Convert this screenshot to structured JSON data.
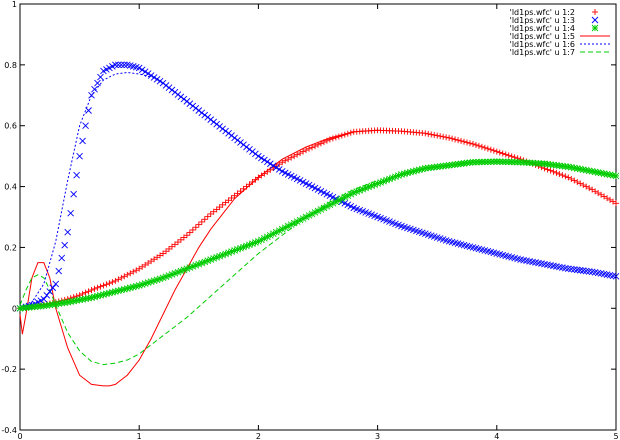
{
  "chart_data": {
    "type": "line",
    "title": "",
    "xlabel": "",
    "ylabel": "",
    "xlim": [
      0,
      5
    ],
    "ylim": [
      -0.4,
      1
    ],
    "x_ticks": [
      0,
      1,
      2,
      3,
      4,
      5
    ],
    "x_tick_labels": [
      "0",
      "1",
      "2",
      "3",
      "4",
      "5"
    ],
    "y_ticks": [
      -0.4,
      -0.2,
      0,
      0.2,
      0.4,
      0.6,
      0.8,
      1
    ],
    "y_tick_labels": [
      "-0.4",
      "-0.2",
      "0",
      "0.2",
      "0.4",
      "0.6",
      "0.8",
      "1"
    ],
    "grid": false,
    "legend_position": "top-right",
    "series": [
      {
        "name": "'ld1ps.wfc' u 1:2",
        "style": "plus",
        "color": "#ff0000",
        "x": [
          0,
          0.1,
          0.2,
          0.3,
          0.4,
          0.5,
          0.6,
          0.8,
          1.0,
          1.2,
          1.4,
          1.6,
          1.8,
          2.0,
          2.2,
          2.4,
          2.6,
          2.8,
          3.0,
          3.2,
          3.4,
          3.6,
          3.8,
          4.0,
          4.2,
          4.4,
          4.6,
          4.8,
          5.0
        ],
        "y": [
          0,
          0.005,
          0.012,
          0.02,
          0.03,
          0.043,
          0.06,
          0.09,
          0.13,
          0.18,
          0.24,
          0.31,
          0.37,
          0.43,
          0.48,
          0.52,
          0.555,
          0.58,
          0.585,
          0.582,
          0.575,
          0.56,
          0.54,
          0.515,
          0.49,
          0.46,
          0.43,
          0.39,
          0.345
        ]
      },
      {
        "name": "'ld1ps.wfc' u 1:3",
        "style": "cross",
        "color": "#0000ff",
        "x": [
          0,
          0.1,
          0.2,
          0.3,
          0.4,
          0.5,
          0.6,
          0.7,
          0.8,
          0.9,
          1.0,
          1.2,
          1.4,
          1.6,
          1.8,
          2.0,
          2.2,
          2.4,
          2.6,
          2.8,
          3.0,
          3.2,
          3.4,
          3.6,
          3.8,
          4.0,
          4.2,
          4.4,
          4.6,
          4.8,
          5.0
        ],
        "y": [
          0,
          0.01,
          0.03,
          0.08,
          0.25,
          0.5,
          0.7,
          0.78,
          0.8,
          0.8,
          0.79,
          0.74,
          0.68,
          0.62,
          0.56,
          0.5,
          0.45,
          0.41,
          0.37,
          0.33,
          0.3,
          0.27,
          0.245,
          0.22,
          0.2,
          0.18,
          0.16,
          0.145,
          0.13,
          0.12,
          0.105
        ]
      },
      {
        "name": "'ld1ps.wfc' u 1:4",
        "style": "star",
        "color": "#00cc00",
        "x": [
          0,
          0.2,
          0.4,
          0.6,
          0.8,
          1.0,
          1.2,
          1.4,
          1.6,
          1.8,
          2.0,
          2.2,
          2.4,
          2.6,
          2.8,
          3.0,
          3.2,
          3.4,
          3.6,
          3.8,
          4.0,
          4.2,
          4.4,
          4.6,
          4.8,
          5.0
        ],
        "y": [
          0,
          0.008,
          0.02,
          0.035,
          0.055,
          0.075,
          0.1,
          0.13,
          0.16,
          0.19,
          0.22,
          0.26,
          0.3,
          0.34,
          0.38,
          0.41,
          0.44,
          0.46,
          0.47,
          0.48,
          0.482,
          0.48,
          0.475,
          0.465,
          0.45,
          0.435
        ]
      },
      {
        "name": "'ld1ps.wfc' u 1:5",
        "style": "solid",
        "color": "#ff0000",
        "x": [
          0,
          0.02,
          0.05,
          0.1,
          0.15,
          0.2,
          0.25,
          0.3,
          0.4,
          0.5,
          0.6,
          0.7,
          0.75,
          0.8,
          0.9,
          1.0,
          1.1,
          1.2,
          1.3,
          1.4,
          1.5,
          1.6,
          1.7,
          1.8,
          2.0,
          2.2,
          2.4,
          2.6,
          2.8,
          3.0
        ],
        "y": [
          -0.02,
          -0.085,
          -0.02,
          0.1,
          0.15,
          0.15,
          0.1,
          0.0,
          -0.13,
          -0.22,
          -0.25,
          -0.255,
          -0.255,
          -0.25,
          -0.22,
          -0.17,
          -0.1,
          -0.02,
          0.06,
          0.13,
          0.2,
          0.26,
          0.31,
          0.36,
          0.43,
          0.49,
          0.53,
          0.56,
          0.58,
          0.585
        ]
      },
      {
        "name": "'ld1ps.wfc' u 1:6",
        "style": "dotted",
        "color": "#0000ff",
        "x": [
          0,
          0.1,
          0.2,
          0.3,
          0.4,
          0.5,
          0.6,
          0.7,
          0.8,
          0.9,
          1.0,
          1.1
        ],
        "y": [
          0,
          0.02,
          0.08,
          0.22,
          0.42,
          0.6,
          0.7,
          0.75,
          0.77,
          0.775,
          0.77,
          0.76
        ]
      },
      {
        "name": "'ld1ps.wfc' u 1:7",
        "style": "dashed",
        "color": "#00cc00",
        "x": [
          0,
          0.05,
          0.1,
          0.15,
          0.2,
          0.25,
          0.3,
          0.4,
          0.5,
          0.6,
          0.7,
          0.8,
          0.9,
          1.0,
          1.1,
          1.2,
          1.4,
          1.6,
          1.8,
          2.0,
          2.2,
          2.4,
          2.6,
          2.8,
          3.0
        ],
        "y": [
          0.01,
          0.06,
          0.1,
          0.11,
          0.1,
          0.06,
          0.01,
          -0.08,
          -0.14,
          -0.175,
          -0.185,
          -0.18,
          -0.17,
          -0.15,
          -0.12,
          -0.09,
          -0.03,
          0.04,
          0.11,
          0.18,
          0.24,
          0.3,
          0.35,
          0.39,
          0.42
        ]
      }
    ]
  }
}
